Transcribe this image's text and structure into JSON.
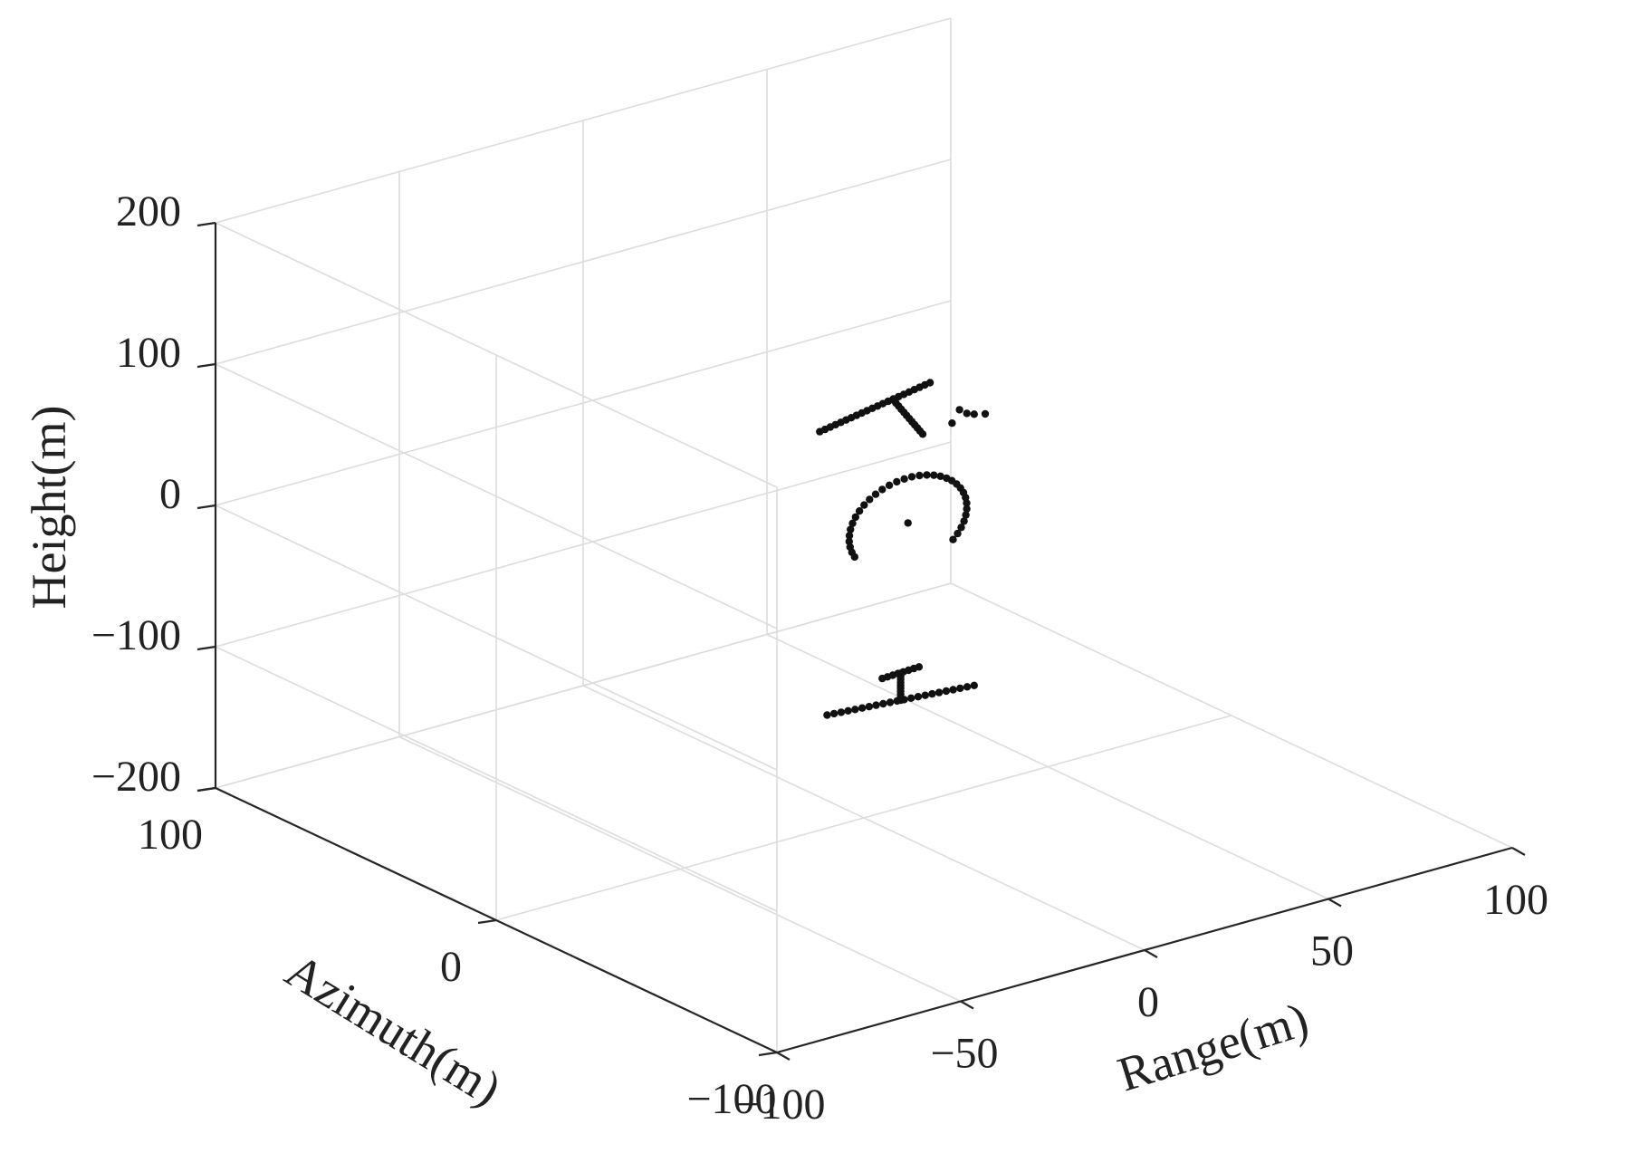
{
  "chart_data": {
    "type": "scatter",
    "is_3d": true,
    "title": "",
    "xlabel": "Range(m)",
    "ylabel": "Azimuth(m)",
    "zlabel": "Height(m)",
    "xlim": [
      -100,
      100
    ],
    "ylim": [
      -100,
      100
    ],
    "zlim": [
      -200,
      200
    ],
    "x_ticks": [
      -100,
      -50,
      0,
      50,
      100
    ],
    "x_tick_labels": [
      "−100",
      "−50",
      "0",
      "50",
      "100"
    ],
    "y_ticks": [
      -100,
      0,
      100
    ],
    "y_tick_labels": [
      "−100",
      "0",
      "100"
    ],
    "z_ticks": [
      -200,
      -100,
      0,
      100,
      200
    ],
    "z_tick_labels": [
      "−200",
      "−100",
      "0",
      "100",
      "200"
    ],
    "grid": true,
    "box": false,
    "marker_color": "#111111",
    "series": [
      {
        "point_sets": [
          {
            "shape": "segment",
            "from": [
              -10,
              0,
              -120
            ],
            "to": [
              30,
              0,
              -128
            ],
            "count": 22
          },
          {
            "shape": "segment",
            "from": [
              10,
              0,
              -124
            ],
            "to": [
              10,
              0,
              -105
            ],
            "count": 10
          },
          {
            "shape": "segment",
            "from": [
              5,
              0,
              -105
            ],
            "to": [
              15,
              0,
              -104
            ],
            "count": 8
          },
          {
            "shape": "arc",
            "center": [
              12,
              0,
              0
            ],
            "radius": 16,
            "start_deg": -40,
            "end_deg": 205,
            "count": 34
          },
          {
            "shape": "points",
            "coords": [
              [
                12,
                0,
                0
              ]
            ]
          },
          {
            "shape": "segment",
            "from": [
              -12,
              0,
              82
            ],
            "to": [
              18,
              0,
              95
            ],
            "count": 22
          },
          {
            "shape": "segment",
            "from": [
              8,
              0,
              90
            ],
            "to": [
              16,
              0,
              60
            ],
            "count": 12
          },
          {
            "shape": "points",
            "coords": [
              [
                24,
                0,
                62
              ],
              [
                30,
                0,
                64
              ],
              [
                33,
                0,
                62
              ],
              [
                26,
                0,
                70
              ],
              [
                28,
                0,
                66
              ]
            ]
          }
        ]
      }
    ]
  }
}
